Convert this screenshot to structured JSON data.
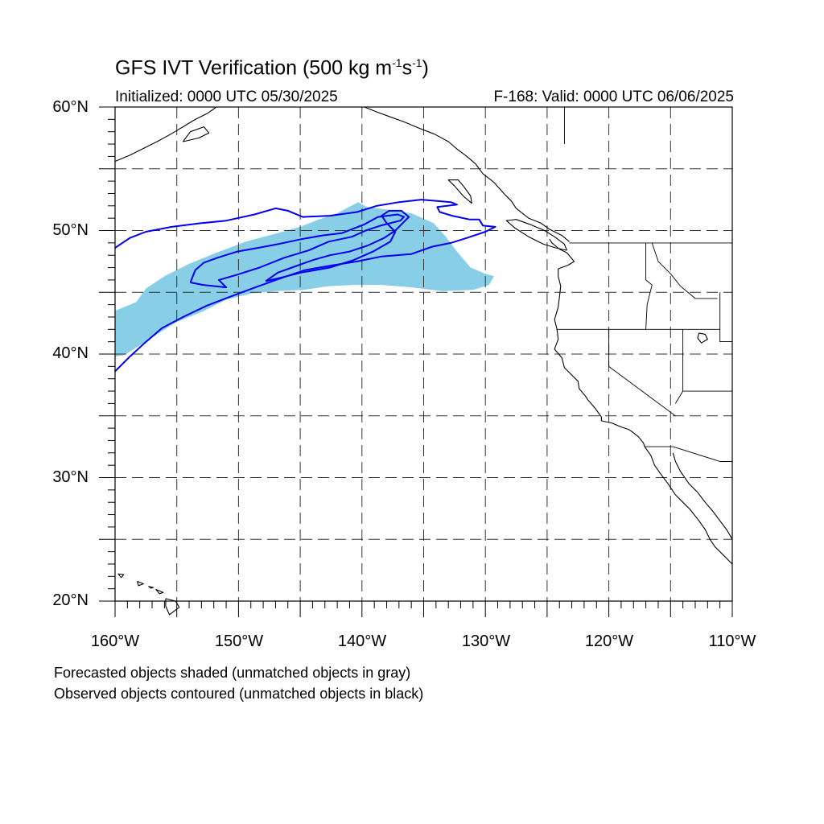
{
  "title": {
    "prefix": "GFS IVT Verification (500 kg m",
    "exp1": "-1",
    "mid": "s",
    "exp2": "-1",
    "suffix": ")"
  },
  "initialized": "Initialized: 0000 UTC 05/30/2025",
  "valid": "F-168: Valid: 0000 UTC 06/06/2025",
  "lat_labels": [
    "60°N",
    "50°N",
    "40°N",
    "30°N",
    "20°N"
  ],
  "lon_labels": [
    "160°W",
    "150°W",
    "140°W",
    "130°W",
    "120°W",
    "110°W"
  ],
  "notes": {
    "forecast": "Forecasted objects shaded (unmatched objects in gray)",
    "observed": "Observed objects contoured (unmatched objects in black)"
  },
  "map": {
    "extent": {
      "lon": [
        -160,
        -110
      ],
      "lat": [
        20,
        60
      ]
    },
    "gridlines_deg": 5,
    "colors": {
      "forecast_fill": "#87CEE6",
      "observed_contour": "#0000EE",
      "coastline": "#000000",
      "gridline": "#333333"
    },
    "forecast_object": [
      [
        -160,
        43.5
      ],
      [
        -158.3,
        44.2
      ],
      [
        -157.5,
        45.3
      ],
      [
        -156,
        46.3
      ],
      [
        -154,
        47.3
      ],
      [
        -151.8,
        48.2
      ],
      [
        -149.4,
        49.1
      ],
      [
        -146.8,
        49.8
      ],
      [
        -145,
        50.3
      ],
      [
        -143.5,
        50.9
      ],
      [
        -142,
        51.4
      ],
      [
        -140.3,
        52.3
      ],
      [
        -139.6,
        51.9
      ],
      [
        -138,
        51.7
      ],
      [
        -136,
        51.4
      ],
      [
        -134.2,
        50.6
      ],
      [
        -133.2,
        49.5
      ],
      [
        -132.3,
        48.3
      ],
      [
        -131.2,
        47
      ],
      [
        -130,
        46.5
      ],
      [
        -129.3,
        46.3
      ],
      [
        -129.7,
        45.6
      ],
      [
        -131,
        45.2
      ],
      [
        -133.5,
        45.1
      ],
      [
        -136,
        45.4
      ],
      [
        -138.5,
        45.6
      ],
      [
        -140.6,
        45.6
      ],
      [
        -142.7,
        45.5
      ],
      [
        -144.7,
        45.2
      ],
      [
        -147,
        45.1
      ],
      [
        -149,
        44.9
      ],
      [
        -151,
        44.4
      ],
      [
        -153,
        43.4
      ],
      [
        -155,
        42.6
      ],
      [
        -156.3,
        41.8
      ],
      [
        -158,
        40.7
      ],
      [
        -159.3,
        39.9
      ],
      [
        -160,
        39.8
      ]
    ],
    "observed_outer": [
      [
        -160,
        48.6
      ],
      [
        -158.8,
        49.4
      ],
      [
        -157.5,
        49.9
      ],
      [
        -155.4,
        50.3
      ],
      [
        -153,
        50.6
      ],
      [
        -151,
        50.8
      ],
      [
        -148.7,
        51.3
      ],
      [
        -147,
        51.8
      ],
      [
        -146,
        51.6
      ],
      [
        -144.8,
        51.1
      ],
      [
        -142.6,
        51.2
      ],
      [
        -140.4,
        51.5
      ],
      [
        -138.8,
        52
      ],
      [
        -137,
        52.3
      ],
      [
        -135.2,
        52.5
      ],
      [
        -133.9,
        52.4
      ],
      [
        -132.8,
        52.3
      ],
      [
        -132.3,
        52.1
      ],
      [
        -133.9,
        51.9
      ],
      [
        -133.7,
        51.5
      ],
      [
        -132.7,
        51.2
      ],
      [
        -131.3,
        50.9
      ],
      [
        -130.5,
        50.9
      ],
      [
        -130.2,
        50.4
      ],
      [
        -129.2,
        50.3
      ],
      [
        -130,
        49.9
      ],
      [
        -131.5,
        49.4
      ],
      [
        -132.8,
        49
      ],
      [
        -134.3,
        48.7
      ],
      [
        -136,
        48.1
      ],
      [
        -138.4,
        47.9
      ],
      [
        -140.4,
        47.5
      ],
      [
        -142.3,
        47.2
      ],
      [
        -144.6,
        46.8
      ],
      [
        -146.7,
        46.1
      ],
      [
        -148.9,
        45.3
      ],
      [
        -150.8,
        44.6
      ],
      [
        -152.6,
        43.9
      ],
      [
        -154.5,
        43
      ],
      [
        -156.2,
        42.1
      ],
      [
        -157.6,
        40.9
      ],
      [
        -158.8,
        39.8
      ],
      [
        -160,
        38.6
      ]
    ],
    "observed_inner": [
      [
        -153.9,
        45.8
      ],
      [
        -153.5,
        46.8
      ],
      [
        -152.8,
        47.4
      ],
      [
        -151.7,
        47.8
      ],
      [
        -150.1,
        48.3
      ],
      [
        -148.4,
        48.6
      ],
      [
        -146.8,
        48.9
      ],
      [
        -144.9,
        49.3
      ],
      [
        -143.2,
        49.6
      ],
      [
        -141.6,
        49.8
      ],
      [
        -139.8,
        50.5
      ],
      [
        -138.7,
        51.1
      ],
      [
        -137.1,
        51.3
      ],
      [
        -136.6,
        51.1
      ],
      [
        -136.9,
        50.8
      ],
      [
        -138.5,
        50.4
      ],
      [
        -139.7,
        50
      ],
      [
        -140.8,
        49.5
      ],
      [
        -142.7,
        49.1
      ],
      [
        -144.3,
        48.4
      ],
      [
        -146.3,
        47.8
      ],
      [
        -148.3,
        47
      ],
      [
        -150.2,
        46.4
      ],
      [
        -151.6,
        46
      ],
      [
        -151,
        45.4
      ],
      [
        -152.9,
        45.6
      ],
      [
        -153.9,
        45.8
      ]
    ],
    "observed_tail": [
      [
        -147.8,
        45.9
      ],
      [
        -146.5,
        46.2
      ],
      [
        -144.9,
        46.6
      ],
      [
        -142.6,
        47
      ],
      [
        -140.7,
        47.6
      ],
      [
        -139.1,
        48.3
      ],
      [
        -137.7,
        49.1
      ],
      [
        -137.3,
        49.9
      ],
      [
        -138,
        50.6
      ],
      [
        -138.4,
        51.2
      ],
      [
        -137.8,
        51.6
      ],
      [
        -136.8,
        51.6
      ],
      [
        -136.2,
        51.1
      ],
      [
        -136.7,
        50.6
      ],
      [
        -137.3,
        50
      ],
      [
        -138.2,
        49.4
      ],
      [
        -139.5,
        48.8
      ],
      [
        -141,
        48.3
      ],
      [
        -142.6,
        48
      ],
      [
        -144,
        47.6
      ],
      [
        -145.4,
        47.1
      ],
      [
        -146.8,
        46.6
      ],
      [
        -147.8,
        45.9
      ]
    ],
    "coast_na": [
      [
        -124.8,
        49.3
      ],
      [
        -124.6,
        49
      ],
      [
        -124,
        48.5
      ],
      [
        -123.4,
        48.2
      ],
      [
        -122.8,
        47.5
      ],
      [
        -123.3,
        47.2
      ],
      [
        -124.1,
        46.9
      ],
      [
        -124.1,
        46.3
      ],
      [
        -123.9,
        45.5
      ],
      [
        -124,
        44.6
      ],
      [
        -124.1,
        43.8
      ],
      [
        -124.4,
        42.8
      ],
      [
        -124.2,
        42
      ],
      [
        -124.1,
        41.2
      ],
      [
        -124.4,
        40.4
      ],
      [
        -123.8,
        39.7
      ],
      [
        -123.6,
        38.9
      ],
      [
        -122.9,
        38.2
      ],
      [
        -122.5,
        37.8
      ],
      [
        -122.4,
        37.2
      ],
      [
        -121.9,
        36.6
      ],
      [
        -121.7,
        36.3
      ],
      [
        -121.1,
        35.6
      ],
      [
        -120.6,
        34.9
      ],
      [
        -120.6,
        34.6
      ],
      [
        -119.7,
        34.4
      ],
      [
        -119,
        34.1
      ],
      [
        -118.4,
        33.9
      ],
      [
        -118.1,
        33.7
      ],
      [
        -117.6,
        33.3
      ],
      [
        -117.2,
        32.8
      ],
      [
        -117.1,
        32.5
      ],
      [
        -116.6,
        31.8
      ],
      [
        -116.3,
        31
      ],
      [
        -115.8,
        30.3
      ],
      [
        -115.2,
        29.5
      ],
      [
        -114.6,
        28.6
      ],
      [
        -114,
        28
      ],
      [
        -113.4,
        27.4
      ],
      [
        -112.7,
        26.5
      ],
      [
        -112.2,
        25.8
      ],
      [
        -111.8,
        25
      ],
      [
        -111.4,
        24.4
      ],
      [
        -110.7,
        23.7
      ],
      [
        -110,
        23
      ]
    ],
    "coast_gulf": [
      [
        -114.8,
        32
      ],
      [
        -114.6,
        31.3
      ],
      [
        -114.2,
        30.5
      ],
      [
        -113.5,
        29.5
      ],
      [
        -112.8,
        28.8
      ],
      [
        -112.2,
        28
      ],
      [
        -111.6,
        27.3
      ],
      [
        -111,
        26.5
      ],
      [
        -110.4,
        25.7
      ],
      [
        -110,
        25
      ]
    ],
    "coast_bc": [
      [
        -123.2,
        49.1
      ],
      [
        -123.8,
        49.6
      ],
      [
        -124.8,
        50.1
      ],
      [
        -125.5,
        50.6
      ],
      [
        -126.5,
        51
      ],
      [
        -127.5,
        51.8
      ],
      [
        -127.9,
        52.4
      ],
      [
        -128.5,
        53
      ],
      [
        -129.3,
        53.9
      ],
      [
        -130.2,
        54.6
      ],
      [
        -130.8,
        55.4
      ],
      [
        -131.5,
        56
      ],
      [
        -132.3,
        56.6
      ],
      [
        -133,
        57.2
      ],
      [
        -134.1,
        57.8
      ],
      [
        -135.4,
        58.3
      ],
      [
        -136.6,
        58.8
      ],
      [
        -137.7,
        59.2
      ],
      [
        -138.8,
        59.6
      ],
      [
        -139.8,
        60
      ]
    ],
    "vancouver_island": [
      [
        -123.4,
        48.4
      ],
      [
        -124.3,
        48.6
      ],
      [
        -125.3,
        48.9
      ],
      [
        -126.5,
        49.5
      ],
      [
        -127.6,
        50.2
      ],
      [
        -128.3,
        50.8
      ],
      [
        -127.5,
        50.9
      ],
      [
        -126.4,
        50.5
      ],
      [
        -125.2,
        50
      ],
      [
        -124.4,
        49.5
      ],
      [
        -123.6,
        48.9
      ],
      [
        -123.4,
        48.4
      ]
    ],
    "haida_gwaii": [
      [
        -131.1,
        52.2
      ],
      [
        -131.8,
        52.8
      ],
      [
        -132.5,
        53.6
      ],
      [
        -133,
        54.1
      ],
      [
        -132.2,
        54.1
      ],
      [
        -131.7,
        53.5
      ],
      [
        -131.2,
        52.8
      ],
      [
        -131.1,
        52.2
      ]
    ],
    "alaska_pen": [
      [
        -160,
        55.6
      ],
      [
        -158.8,
        56.1
      ],
      [
        -157.8,
        56.6
      ],
      [
        -156.6,
        57.2
      ],
      [
        -155.5,
        57.8
      ],
      [
        -154.5,
        58.4
      ],
      [
        -153.5,
        59
      ],
      [
        -152.5,
        59.5
      ],
      [
        -151.8,
        60
      ]
    ],
    "kodiak": [
      [
        -154.5,
        57.2
      ],
      [
        -153.2,
        57.5
      ],
      [
        -152.4,
        57.9
      ],
      [
        -152.8,
        58.4
      ],
      [
        -153.9,
        58
      ],
      [
        -154.5,
        57.2
      ]
    ],
    "hawaii": [
      [
        [
          -155.9,
          20.2
        ],
        [
          -155.1,
          20
        ],
        [
          -154.8,
          19.5
        ],
        [
          -155.6,
          18.9
        ],
        [
          -155.9,
          19.6
        ],
        [
          -155.9,
          20.2
        ]
      ],
      [
        [
          -156.7,
          20.95
        ],
        [
          -156.1,
          20.7
        ],
        [
          -156.4,
          20.6
        ],
        [
          -156.7,
          20.95
        ]
      ],
      [
        [
          -157.3,
          21.2
        ],
        [
          -156.9,
          21.1
        ],
        [
          -157.1,
          21.05
        ],
        [
          -157.3,
          21.2
        ]
      ],
      [
        [
          -158.2,
          21.6
        ],
        [
          -157.7,
          21.4
        ],
        [
          -158.1,
          21.25
        ],
        [
          -158.2,
          21.6
        ]
      ],
      [
        [
          -159.75,
          22.2
        ],
        [
          -159.3,
          22.15
        ],
        [
          -159.5,
          21.9
        ],
        [
          -159.75,
          22.2
        ]
      ]
    ],
    "lake": [
      [
        -112.7,
        41.7
      ],
      [
        -112.2,
        41.6
      ],
      [
        -112,
        41.2
      ],
      [
        -112.5,
        40.9
      ],
      [
        -112.8,
        41.3
      ],
      [
        -112.7,
        41.7
      ]
    ],
    "borders": [
      [
        [
          -123.2,
          49
        ],
        [
          -110,
          49
        ]
      ],
      [
        [
          -124.2,
          42
        ],
        [
          -117,
          42
        ],
        [
          -111,
          42
        ]
      ],
      [
        [
          -120,
          42
        ],
        [
          -120,
          39
        ],
        [
          -114.6,
          35
        ]
      ],
      [
        [
          -117.1,
          32.5
        ],
        [
          -114.8,
          32.5
        ],
        [
          -111,
          31.3
        ],
        [
          -110,
          31.3
        ]
      ],
      [
        [
          -117,
          49
        ],
        [
          -117,
          46
        ],
        [
          -116.5,
          45.6
        ],
        [
          -116.9,
          44
        ],
        [
          -117,
          42
        ]
      ],
      [
        [
          -116.5,
          49
        ],
        [
          -116,
          47.5
        ],
        [
          -115,
          46.5
        ],
        [
          -114.2,
          45.5
        ],
        [
          -113,
          44.5
        ],
        [
          -111.2,
          44.5
        ]
      ],
      [
        [
          -114,
          42
        ],
        [
          -114,
          37
        ],
        [
          -114.6,
          36
        ]
      ],
      [
        [
          -111,
          45
        ],
        [
          -111,
          41
        ],
        [
          -110,
          41
        ]
      ],
      [
        [
          -114,
          37
        ],
        [
          -110,
          37
        ]
      ],
      [
        [
          -123.6,
          57
        ],
        [
          -123.6,
          60
        ]
      ]
    ]
  }
}
